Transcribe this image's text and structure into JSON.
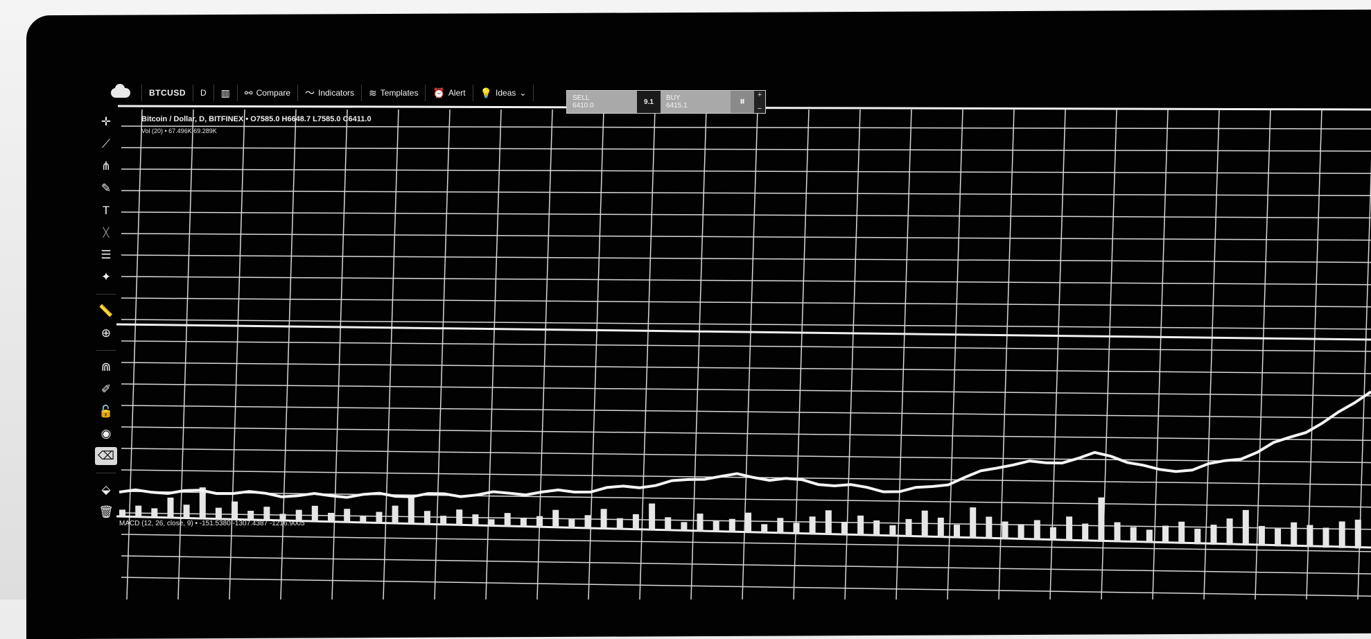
{
  "toolbar": {
    "symbol": "BTCUSD",
    "interval": "D",
    "items": [
      {
        "label": "Compare",
        "icon": "compare-icon"
      },
      {
        "label": "Indicators",
        "icon": "indicators-icon"
      },
      {
        "label": "Templates",
        "icon": "templates-icon"
      },
      {
        "label": "Alert",
        "icon": "alarm-clock-icon"
      },
      {
        "label": "Ideas",
        "icon": "lightbulb-icon"
      }
    ]
  },
  "trade_widget": {
    "sell_label": "SELL",
    "sell_price": "6410.0",
    "quantity": "9.1",
    "buy_label": "BUY",
    "buy_price": "6415.1",
    "plus": "+",
    "minus": "−"
  },
  "legend": {
    "main": "Bitcoin / Dollar, D, BITFINEX • O7585.0 H6648.7 L7585.0 C6411.0",
    "volume": "Vol (20) • 67.496K 69.289K",
    "oscillator": "MACD (12, 26, close, 9) • -151.5380 -1307.4387 -1216.9005"
  },
  "sidebar_tools": [
    {
      "icon": "crosshair-icon",
      "active": false
    },
    {
      "icon": "trend-line-icon",
      "active": false
    },
    {
      "icon": "pitchfork-icon",
      "active": false
    },
    {
      "icon": "brush-icon",
      "active": false
    },
    {
      "icon": "text-tool-icon",
      "active": false
    },
    {
      "icon": "pattern-icon",
      "active": false
    },
    {
      "icon": "fib-retracement-icon",
      "active": false
    },
    {
      "icon": "shapes-icon",
      "active": false
    },
    {
      "icon": "measure-ruler-icon",
      "active": false
    },
    {
      "icon": "zoom-in-icon",
      "active": false
    },
    {
      "icon": "magnet-icon",
      "active": false
    },
    {
      "icon": "drawing-mode-icon",
      "active": false
    },
    {
      "icon": "lock-icon",
      "active": false
    },
    {
      "icon": "eye-icon",
      "active": false
    },
    {
      "icon": "eraser-icon",
      "active": true
    },
    {
      "icon": "layers-icon",
      "active": false
    },
    {
      "icon": "trash-icon",
      "active": false
    }
  ],
  "colors": {
    "background": "#020202",
    "grid": "#d8d8d8",
    "price_line": "#f4f4f4",
    "volume": "#e6e6e6"
  },
  "chart_data": {
    "type": "line",
    "title": "Bitcoin / Dollar, D, BITFINEX",
    "grid": true,
    "series": [
      {
        "name": "Bitcoin / Dollar",
        "y": [
          1.0,
          1.05,
          1.1,
          1.15,
          1.18,
          1.2,
          1.22,
          1.24,
          1.2,
          1.17,
          1.15,
          1.13,
          1.16,
          1.2,
          1.25,
          1.3,
          1.35,
          1.38,
          1.4,
          1.45,
          1.5,
          1.55,
          1.62,
          1.7,
          1.78,
          1.85,
          1.92,
          2.0,
          2.1,
          2.2,
          2.35,
          2.5,
          2.65,
          2.8,
          3.0,
          3.25,
          3.5,
          3.6,
          3.7,
          3.65,
          3.55,
          3.5,
          3.4,
          3.3,
          3.2,
          3.1,
          3.0,
          2.9,
          2.8,
          3.0,
          3.3,
          3.6,
          4.0,
          4.5,
          5.0,
          5.3,
          5.4,
          5.35,
          5.6,
          5.9,
          6.2,
          6.1,
          5.8,
          5.4,
          5.0,
          5.1,
          5.3,
          5.6,
          5.9,
          6.3,
          6.8,
          7.4,
          8.0,
          8.6,
          9.2,
          10.0,
          11.0,
          12.0
        ]
      },
      {
        "name": "Volume",
        "y": [
          3,
          5,
          4,
          9,
          6,
          14,
          5,
          8,
          4,
          6,
          3,
          5,
          7,
          4,
          6,
          3,
          5,
          8,
          12,
          6,
          4,
          7,
          5,
          3,
          6,
          4,
          5,
          8,
          4,
          6,
          9,
          5,
          7,
          12,
          6,
          4,
          8,
          5,
          6,
          9,
          4,
          7,
          5,
          8,
          11,
          6,
          9,
          7,
          5,
          8,
          12,
          9,
          6,
          14,
          10,
          8,
          7,
          9,
          6,
          11,
          8,
          20,
          9,
          7,
          6,
          8,
          10,
          7,
          9,
          12,
          16,
          9,
          8,
          11,
          10,
          9,
          12,
          13
        ]
      }
    ]
  }
}
